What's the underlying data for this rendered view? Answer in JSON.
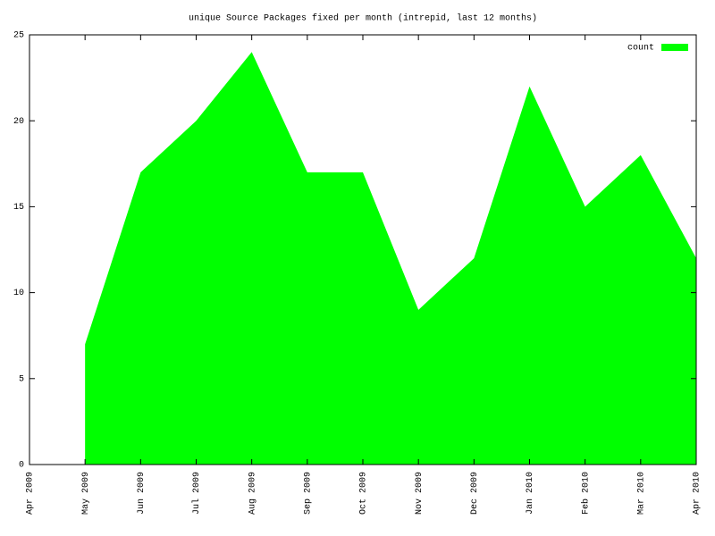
{
  "chart_data": {
    "type": "area",
    "title": "unique Source Packages fixed per month (intrepid, last 12 months)",
    "categories": [
      "Apr 2009",
      "May 2009",
      "Jun 2009",
      "Jul 2009",
      "Aug 2009",
      "Sep 2009",
      "Oct 2009",
      "Nov 2009",
      "Dec 2009",
      "Jan 2010",
      "Feb 2010",
      "Mar 2010",
      "Apr 2010"
    ],
    "series": [
      {
        "name": "count",
        "color": "#00ff00",
        "values": [
          null,
          7,
          17,
          20,
          24,
          17,
          17,
          9,
          12,
          22,
          15,
          18,
          12
        ]
      }
    ],
    "ylim": [
      0,
      25
    ],
    "yticks": [
      0,
      5,
      10,
      15,
      20,
      25
    ],
    "legend": "upper right"
  }
}
